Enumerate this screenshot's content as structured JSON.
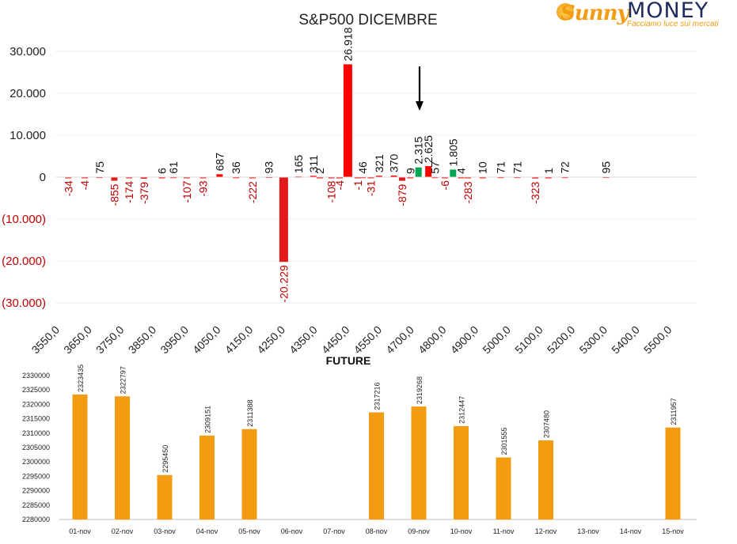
{
  "logo": {
    "brand_left": "Sunny",
    "brand_right": "MONEY",
    "tagline": "Facciamo luce sui mercati"
  },
  "chart_data": [
    {
      "type": "bar",
      "title": "S&P500 DICEMBRE",
      "xlabel": "",
      "ylabel": "",
      "ylim": [
        -30000,
        30000
      ],
      "yticks": [
        "30.000",
        "20.000",
        "10.000",
        "0",
        "(10.000)",
        "(20.000)",
        "(30.000)"
      ],
      "xticks": [
        "3550,0",
        "3650,0",
        "3750,0",
        "3850,0",
        "3950,0",
        "4050,0",
        "4150,0",
        "4250,0",
        "4350,0",
        "4450,0",
        "4550,0",
        "4700,0",
        "4800,0",
        "4900,0",
        "5000,0",
        "5100,0",
        "5200,0",
        "5300,0",
        "5400,0",
        "5500,0"
      ],
      "annotation": "arrow pointing down at 4700,0",
      "colors": {
        "negative": "#e31a1c",
        "positive_large": "#ff0000",
        "positive_green": "#00a651",
        "tick_neg": "#c00000"
      },
      "bars": [
        {
          "pos": 0.2,
          "value": -34,
          "label": "-34"
        },
        {
          "pos": 0.7,
          "value": -4,
          "label": "-4"
        },
        {
          "pos": 1.15,
          "value": 75,
          "label": "75"
        },
        {
          "pos": 1.6,
          "value": -855,
          "label": "-855"
        },
        {
          "pos": 2.05,
          "value": -174,
          "label": "-174"
        },
        {
          "pos": 2.5,
          "value": -379,
          "label": "-379"
        },
        {
          "pos": 3.05,
          "value": 6,
          "label": "6"
        },
        {
          "pos": 3.4,
          "value": 61,
          "label": "61"
        },
        {
          "pos": 3.8,
          "value": -107,
          "label": "-107"
        },
        {
          "pos": 4.3,
          "value": -93,
          "label": "-93"
        },
        {
          "pos": 4.8,
          "value": 687,
          "label": "687"
        },
        {
          "pos": 5.3,
          "value": 36,
          "label": "36"
        },
        {
          "pos": 5.8,
          "value": -222,
          "label": "-222"
        },
        {
          "pos": 6.3,
          "value": 93,
          "label": "93"
        },
        {
          "pos": 6.75,
          "value": -20229,
          "label": "-20.229"
        },
        {
          "pos": 7.2,
          "value": 165,
          "label": "165"
        },
        {
          "pos": 7.65,
          "value": 311,
          "label": "311"
        },
        {
          "pos": 7.85,
          "value": 2,
          "label": "2"
        },
        {
          "pos": 8.2,
          "value": -108,
          "label": "-108"
        },
        {
          "pos": 8.45,
          "value": -4,
          "label": "-4"
        },
        {
          "pos": 8.7,
          "value": 26918,
          "label": "26.918",
          "color": "#ff0000"
        },
        {
          "pos": 9.0,
          "value": -1,
          "label": "-1"
        },
        {
          "pos": 9.15,
          "value": 46,
          "label": "46"
        },
        {
          "pos": 9.4,
          "value": -31,
          "label": "-31"
        },
        {
          "pos": 9.65,
          "value": 321,
          "label": "321"
        },
        {
          "pos": 10.1,
          "value": 370,
          "label": "370"
        },
        {
          "pos": 10.35,
          "value": -879,
          "label": "-879"
        },
        {
          "pos": 10.6,
          "value": 9,
          "label": "9"
        },
        {
          "pos": 10.85,
          "value": 2315,
          "label": "2.315",
          "color": "#00a651"
        },
        {
          "pos": 11.15,
          "value": 2625,
          "label": "2.625",
          "color": "#ff0000"
        },
        {
          "pos": 11.35,
          "value": 57,
          "label": "57"
        },
        {
          "pos": 11.65,
          "value": -6,
          "label": "-6"
        },
        {
          "pos": 11.9,
          "value": 1805,
          "label": "1.805",
          "color": "#00a651"
        },
        {
          "pos": 12.15,
          "value": 4,
          "label": "4"
        },
        {
          "pos": 12.35,
          "value": -283,
          "label": "-283"
        },
        {
          "pos": 12.8,
          "value": 10,
          "label": "10"
        },
        {
          "pos": 13.35,
          "value": 71,
          "label": "71"
        },
        {
          "pos": 13.85,
          "value": 71,
          "label": "71"
        },
        {
          "pos": 14.4,
          "value": -323,
          "label": "-323"
        },
        {
          "pos": 14.8,
          "value": 1,
          "label": "1"
        },
        {
          "pos": 15.3,
          "value": 72,
          "label": "72"
        },
        {
          "pos": 16.55,
          "value": 95,
          "label": "95"
        }
      ]
    },
    {
      "type": "bar",
      "title": "FUTURE",
      "xlabel": "",
      "ylabel": "",
      "ylim": [
        2280000,
        2330000
      ],
      "yticks": [
        "2330000",
        "2325000",
        "2320000",
        "2315000",
        "2310000",
        "2305000",
        "2300000",
        "2295000",
        "2290000",
        "2285000",
        "2280000"
      ],
      "categories": [
        "01-nov",
        "02-nov",
        "03-nov",
        "04-nov",
        "05-nov",
        "06-nov",
        "07-nov",
        "08-nov",
        "09-nov",
        "10-nov",
        "11-nov",
        "12-nov",
        "13-nov",
        "14-nov",
        "15-nov"
      ],
      "values": [
        2323435,
        2322797,
        2295450,
        2309151,
        2311388,
        null,
        null,
        2317216,
        2319268,
        2312447,
        2301555,
        2307480,
        null,
        null,
        2311957
      ],
      "labels": [
        "2323435",
        "2322797",
        "2295450",
        "2309151",
        "2311388",
        "",
        "",
        "2317216",
        "2319268",
        "2312447",
        "2301555",
        "2307480",
        "",
        "",
        "2311957"
      ],
      "colors": {
        "bar": "#f39c12"
      }
    }
  ]
}
